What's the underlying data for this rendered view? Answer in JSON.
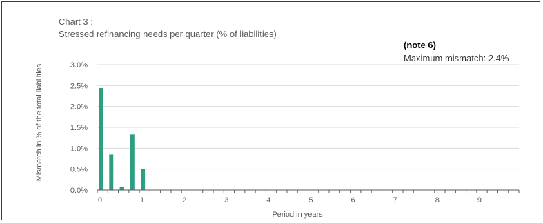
{
  "chart_data": {
    "type": "bar",
    "title": "Chart 3 :",
    "subtitle": "Stressed refinancing needs per quarter  (% of liabilities)",
    "note_label": "(note 6)",
    "note_text": "Maximum mismatch: 2.4%",
    "xlabel": "Period in years",
    "ylabel": "Mismatch in % of the total liabilities",
    "ylim": [
      0,
      3.0
    ],
    "y_ticks": [
      "0.0%",
      "0.5%",
      "1.0%",
      "1.5%",
      "2.0%",
      "2.5%",
      "3.0%"
    ],
    "x_ticks": [
      "0",
      "1",
      "2",
      "3",
      "4",
      "5",
      "6",
      "7",
      "8",
      "9"
    ],
    "xlim": [
      0,
      10
    ],
    "grid": true,
    "bar_color": "#2e9e82",
    "x": [
      0,
      0.25,
      0.5,
      0.75,
      1.0
    ],
    "values": [
      2.44,
      0.85,
      0.07,
      1.33,
      0.51
    ]
  }
}
